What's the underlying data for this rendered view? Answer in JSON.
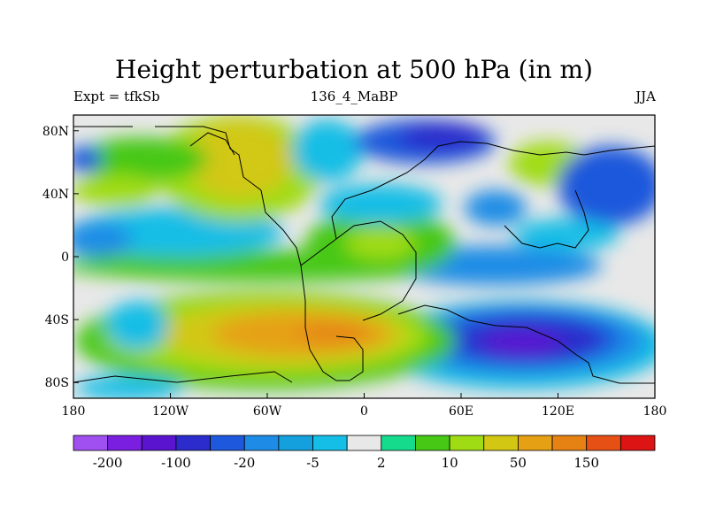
{
  "title": "Height perturbation at 500 hPa (in m)",
  "left_label": "Expt = tfkSb",
  "center_label": "136_4_MaBP",
  "right_label": "JJA",
  "map": {
    "lon_range": [
      -180,
      180
    ],
    "lat_range": [
      -90,
      90
    ],
    "x_ticks": [
      {
        "value": -180,
        "label": "180"
      },
      {
        "value": -120,
        "label": "120W"
      },
      {
        "value": -60,
        "label": "60W"
      },
      {
        "value": 0,
        "label": "0"
      },
      {
        "value": 60,
        "label": "60E"
      },
      {
        "value": 120,
        "label": "120E"
      },
      {
        "value": 180,
        "label": "180"
      }
    ],
    "y_ticks": [
      {
        "value": 80,
        "label": "80N"
      },
      {
        "value": 40,
        "label": "40N"
      },
      {
        "value": 0,
        "label": "0"
      },
      {
        "value": -40,
        "label": "40S"
      },
      {
        "value": -80,
        "label": "80S"
      }
    ]
  },
  "colorbar": {
    "colors": [
      "#a050f0",
      "#7a1ee0",
      "#5a14d0",
      "#2c2ccc",
      "#1e58dc",
      "#1e8ce6",
      "#14a0dc",
      "#14bee6",
      "#e8e8e8",
      "#14dc8c",
      "#46c814",
      "#a0dc14",
      "#d2c814",
      "#e6a014",
      "#e68214",
      "#e65014",
      "#dc1414"
    ],
    "labels": [
      {
        "label": "-200",
        "index": 1
      },
      {
        "label": "-100",
        "index": 3
      },
      {
        "label": "-20",
        "index": 5
      },
      {
        "label": "-5",
        "index": 7
      },
      {
        "label": "2",
        "index": 9
      },
      {
        "label": "10",
        "index": 11
      },
      {
        "label": "50",
        "index": 13
      },
      {
        "label": "150",
        "index": 15
      }
    ]
  }
}
